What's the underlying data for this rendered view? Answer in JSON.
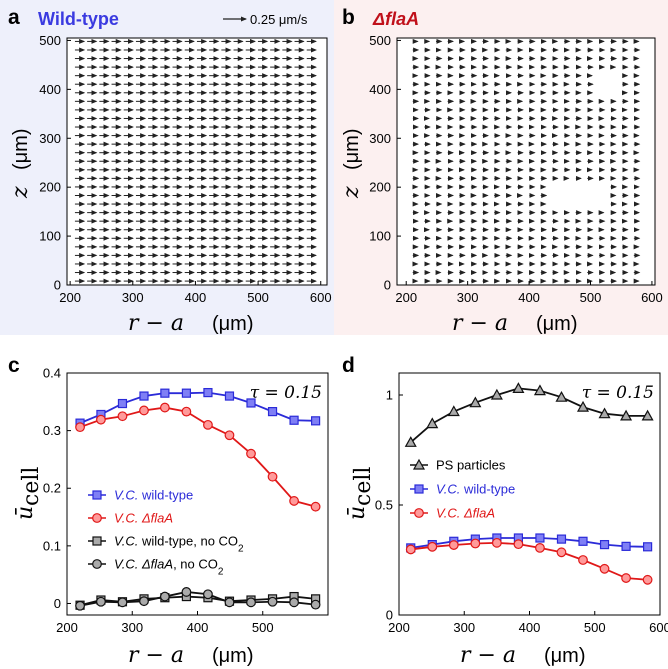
{
  "colors": {
    "blue": "#2b2bd8",
    "blue_fill": "#7f7ff5",
    "red": "#e01818",
    "red_fill": "#ff9a9a",
    "black": "#111111",
    "gray_fill": "#aaaaaa",
    "bg_a": "#eef0fb",
    "bg_b": "#fcf0f0"
  },
  "panels": {
    "a": {
      "letter": "a",
      "title": "Wild-type",
      "scale_label": "0.25 μm/s"
    },
    "b": {
      "letter": "b",
      "title": "ΔflaA"
    },
    "c": {
      "letter": "c",
      "tau": "τ = 0.15"
    },
    "d": {
      "letter": "d",
      "tau": "τ = 0.15"
    }
  },
  "axis_text": {
    "x_sym": "r − a",
    "x_unit": "(μm)",
    "z_sym": "z",
    "z_unit": "(μm)",
    "u_sym": "ū",
    "u_sub": "cell"
  },
  "chart_data": [
    {
      "type": "quiver",
      "panel": "a",
      "title": "Wild-type",
      "xlabel": "r − a (μm)",
      "ylabel": "z (μm)",
      "xlim": [
        195,
        610
      ],
      "ylim": [
        0,
        505
      ],
      "x_ticks": [
        200,
        300,
        400,
        500,
        600
      ],
      "y_ticks": [
        0,
        100,
        200,
        300,
        400,
        500
      ],
      "x_range": [
        215,
        585
      ],
      "z_range": [
        8,
        498
      ],
      "rows": 29,
      "cols": 20,
      "velocity_approx": 0.1,
      "units": "μm/s"
    },
    {
      "type": "quiver",
      "panel": "b",
      "title": "ΔflaA",
      "xlabel": "r − a (μm)",
      "ylabel": "z (μm)",
      "xlim": [
        185,
        605
      ],
      "ylim": [
        0,
        505
      ],
      "x_ticks": [
        200,
        300,
        400,
        500,
        600
      ],
      "y_ticks": [
        0,
        100,
        200,
        300,
        400,
        500
      ],
      "x_range": [
        215,
        575
      ],
      "z_range": [
        8,
        498
      ],
      "rows": 29,
      "cols": 20,
      "velocity_approx": 0.05,
      "units": "μm/s"
    },
    {
      "type": "line",
      "panel": "c",
      "xlabel": "r − a (μm)",
      "ylabel": "ū_cell",
      "xlim": [
        200,
        600
      ],
      "ylim": [
        -0.02,
        0.4
      ],
      "x_ticks": [
        200,
        300,
        400,
        500
      ],
      "y_ticks": [
        0,
        0.1,
        0.2,
        0.3,
        0.4
      ],
      "legend_position": "center-left",
      "series": [
        {
          "name": "V.C. wild-type",
          "name_parts": [
            "V.C.",
            " wild-type"
          ],
          "marker": "square",
          "color": "blue",
          "x": [
            220,
            252,
            285,
            318,
            350,
            383,
            416,
            449,
            482,
            515,
            548,
            581
          ],
          "y": [
            0.313,
            0.328,
            0.347,
            0.36,
            0.365,
            0.365,
            0.366,
            0.36,
            0.348,
            0.333,
            0.318,
            0.317
          ]
        },
        {
          "name": "V.C. ΔflaA",
          "name_parts": [
            "V.C.",
            " ΔflaA"
          ],
          "marker": "circle",
          "color": "red",
          "x": [
            220,
            252,
            285,
            318,
            350,
            383,
            416,
            449,
            482,
            515,
            548,
            581
          ],
          "y": [
            0.306,
            0.319,
            0.325,
            0.335,
            0.34,
            0.333,
            0.31,
            0.292,
            0.26,
            0.22,
            0.178,
            0.168
          ]
        },
        {
          "name": "V.C. wild-type, no CO2",
          "name_parts": [
            "V.C.",
            " wild-type, no CO",
            "2"
          ],
          "marker": "square",
          "color": "gray",
          "x": [
            220,
            252,
            285,
            318,
            350,
            383,
            416,
            449,
            482,
            515,
            548,
            581
          ],
          "y": [
            -0.003,
            0.006,
            0.003,
            0.008,
            0.01,
            0.012,
            0.01,
            0.004,
            0.006,
            0.008,
            0.012,
            0.008
          ]
        },
        {
          "name": "V.C. ΔflaA, no CO2",
          "name_parts": [
            "V.C.",
            " ΔflaA",
            ", no CO",
            "2"
          ],
          "marker": "circle",
          "color": "gray",
          "x": [
            220,
            252,
            285,
            318,
            350,
            383,
            416,
            449,
            482,
            515,
            548,
            581
          ],
          "y": [
            -0.004,
            0.003,
            0.002,
            0.004,
            0.012,
            0.02,
            0.016,
            0.002,
            0.002,
            0.003,
            0.002,
            -0.002
          ]
        }
      ]
    },
    {
      "type": "line",
      "panel": "d",
      "xlabel": "r − a (μm)",
      "ylabel": "ū_cell",
      "xlim": [
        200,
        600
      ],
      "ylim": [
        0,
        1.1
      ],
      "x_ticks": [
        200,
        300,
        400,
        500,
        600
      ],
      "y_ticks": [
        0,
        0.5,
        1
      ],
      "y_tick_labels": [
        "0",
        "0.5",
        "1"
      ],
      "legend_position": "center-left",
      "series": [
        {
          "name": "PS particles",
          "name_parts": [
            "PS particles"
          ],
          "marker": "triangle",
          "color": "black",
          "x": [
            218,
            251,
            284,
            317,
            350,
            383,
            416,
            449,
            482,
            515,
            548,
            581
          ],
          "y": [
            0.785,
            0.87,
            0.925,
            0.965,
            1.0,
            1.03,
            1.02,
            0.99,
            0.945,
            0.915,
            0.905,
            0.905
          ]
        },
        {
          "name": "V.C. wild-type",
          "name_parts": [
            "V.C.",
            " wild-type"
          ],
          "marker": "square",
          "color": "blue",
          "x": [
            218,
            251,
            284,
            317,
            350,
            383,
            416,
            449,
            482,
            515,
            548,
            581
          ],
          "y": [
            0.305,
            0.32,
            0.335,
            0.345,
            0.35,
            0.35,
            0.35,
            0.345,
            0.335,
            0.32,
            0.312,
            0.31
          ]
        },
        {
          "name": "V.C. ΔflaA",
          "name_parts": [
            "V.C.",
            " ΔflaA"
          ],
          "marker": "circle",
          "color": "red",
          "x": [
            218,
            251,
            284,
            317,
            350,
            383,
            416,
            449,
            482,
            515,
            548,
            581
          ],
          "y": [
            0.298,
            0.31,
            0.318,
            0.325,
            0.328,
            0.322,
            0.305,
            0.285,
            0.25,
            0.21,
            0.168,
            0.16
          ]
        }
      ]
    }
  ]
}
